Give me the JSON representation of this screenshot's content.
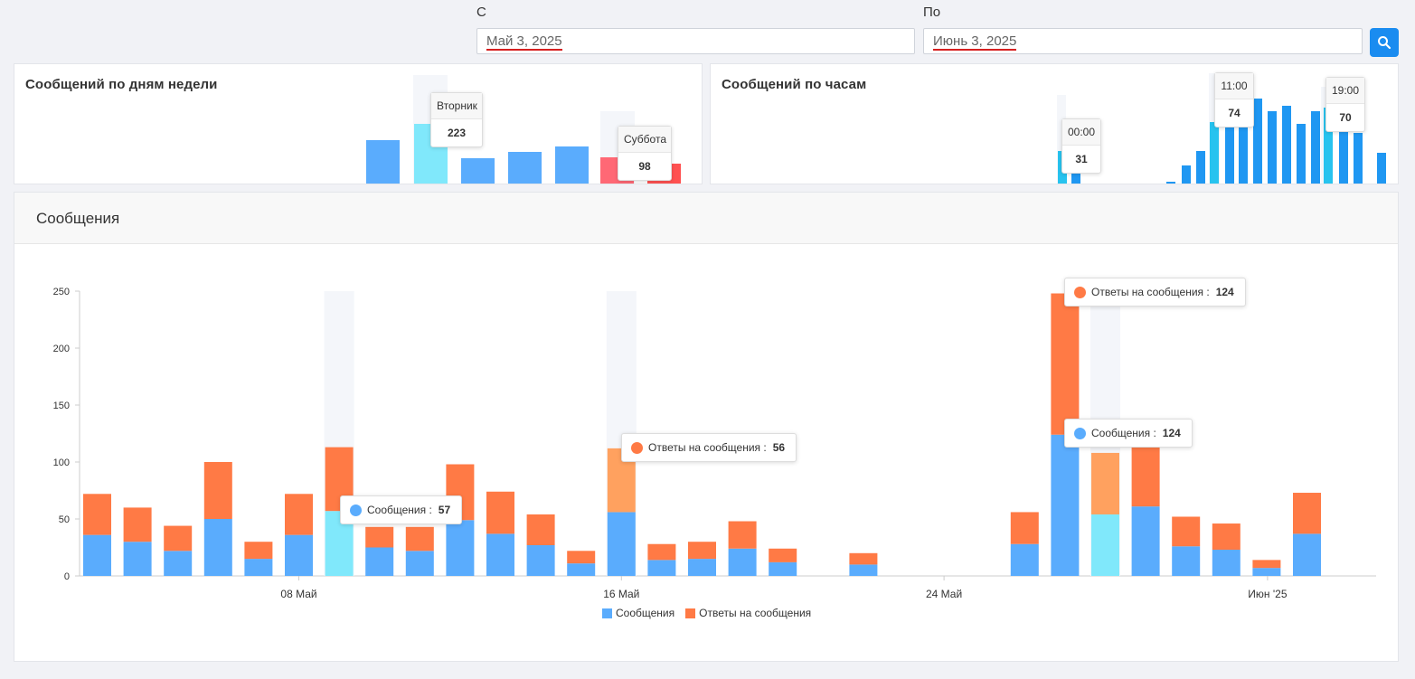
{
  "filters": {
    "from_label": "С",
    "from_value": "Май 3, 2025",
    "to_label": "По",
    "to_value": "Июнь 3, 2025",
    "search_icon": "search-icon"
  },
  "colors": {
    "blue": "#5aacfd",
    "orange": "#ff7a45",
    "cyan_highlight": "#80e8fb",
    "orange_highlight": "#ffa15f",
    "red": "#ff6875",
    "hour_blue": "#1f97f2",
    "hour_highlight": "#27c3ef"
  },
  "weekday_card": {
    "title": "Сообщений по дням недели",
    "tooltip_a": {
      "label": "Вторник",
      "value": "223"
    },
    "tooltip_b": {
      "label": "Суббота",
      "value": "98"
    }
  },
  "hour_card": {
    "title": "Сообщений по часам",
    "tooltip_a": {
      "label": "00:00",
      "value": "31"
    },
    "tooltip_b": {
      "label": "11:00",
      "value": "74"
    },
    "tooltip_c": {
      "label": "19:00",
      "value": "70"
    }
  },
  "main_card": {
    "title": "Сообщения",
    "tooltips": [
      {
        "series": "Сообщения :",
        "value": "57"
      },
      {
        "series": "Ответы на сообщения :",
        "value": "56"
      },
      {
        "series": "Ответы на сообщения :",
        "value": "124"
      },
      {
        "series": "Сообщения :",
        "value": "124"
      }
    ],
    "legend": [
      "Сообщения",
      "Ответы на сообщения"
    ]
  },
  "chart_data": [
    {
      "type": "bar",
      "title": "Сообщений по дням недели",
      "categories": [
        "",
        "Вторник",
        "",
        "",
        "",
        "Суббота",
        ""
      ],
      "values": [
        null,
        223,
        null,
        null,
        null,
        98,
        null
      ],
      "note": "Partially visible: only top portion of bars shown"
    },
    {
      "type": "bar",
      "title": "Сообщений по часам",
      "categories": [
        "00:00",
        "",
        "",
        "",
        "",
        "",
        "",
        "",
        "",
        "",
        "",
        "11:00",
        "",
        "",
        "",
        "",
        "",
        "",
        "",
        "19:00",
        "",
        "",
        ""
      ],
      "values": [
        31,
        null,
        null,
        null,
        null,
        null,
        null,
        null,
        null,
        null,
        null,
        74,
        null,
        null,
        null,
        null,
        null,
        null,
        null,
        70,
        null,
        null,
        null
      ],
      "note": "Partially visible: only top portion of bars shown"
    },
    {
      "type": "bar",
      "title": "Сообщения",
      "stacked": true,
      "ylim": [
        0,
        250
      ],
      "yticks": [
        0,
        50,
        100,
        150,
        200,
        250
      ],
      "xtick_labels": [
        "08 Май",
        "16 Май",
        "24 Май",
        "Июн '25"
      ],
      "x": [
        "2025-05-03",
        "2025-05-04",
        "2025-05-05",
        "2025-05-06",
        "2025-05-07",
        "2025-05-08",
        "2025-05-09",
        "2025-05-10",
        "2025-05-11",
        "2025-05-12",
        "2025-05-13",
        "2025-05-14",
        "2025-05-15",
        "2025-05-16",
        "2025-05-17",
        "2025-05-18",
        "2025-05-19",
        "2025-05-20",
        "2025-05-21",
        "2025-05-22",
        "2025-05-23",
        "2025-05-24",
        "2025-05-25",
        "2025-05-26",
        "2025-05-27",
        "2025-05-28",
        "2025-05-29",
        "2025-05-30",
        "2025-05-31",
        "2025-06-01",
        "2025-06-02",
        "2025-06-03"
      ],
      "series": [
        {
          "name": "Сообщения",
          "values": [
            36,
            30,
            22,
            50,
            15,
            36,
            57,
            25,
            22,
            49,
            37,
            27,
            11,
            56,
            14,
            15,
            24,
            12,
            0,
            10,
            0,
            0,
            0,
            28,
            124,
            54,
            61,
            26,
            23,
            7,
            37,
            0
          ]
        },
        {
          "name": "Ответы на сообщения",
          "values": [
            36,
            30,
            22,
            50,
            15,
            36,
            56,
            18,
            21,
            49,
            37,
            27,
            11,
            56,
            14,
            15,
            24,
            12,
            0,
            10,
            0,
            0,
            0,
            28,
            124,
            54,
            60,
            26,
            23,
            7,
            36,
            0
          ]
        }
      ],
      "highlighted_dates": [
        "2025-05-09",
        "2025-05-16",
        "2025-05-28"
      ],
      "legend": "bottom"
    }
  ]
}
